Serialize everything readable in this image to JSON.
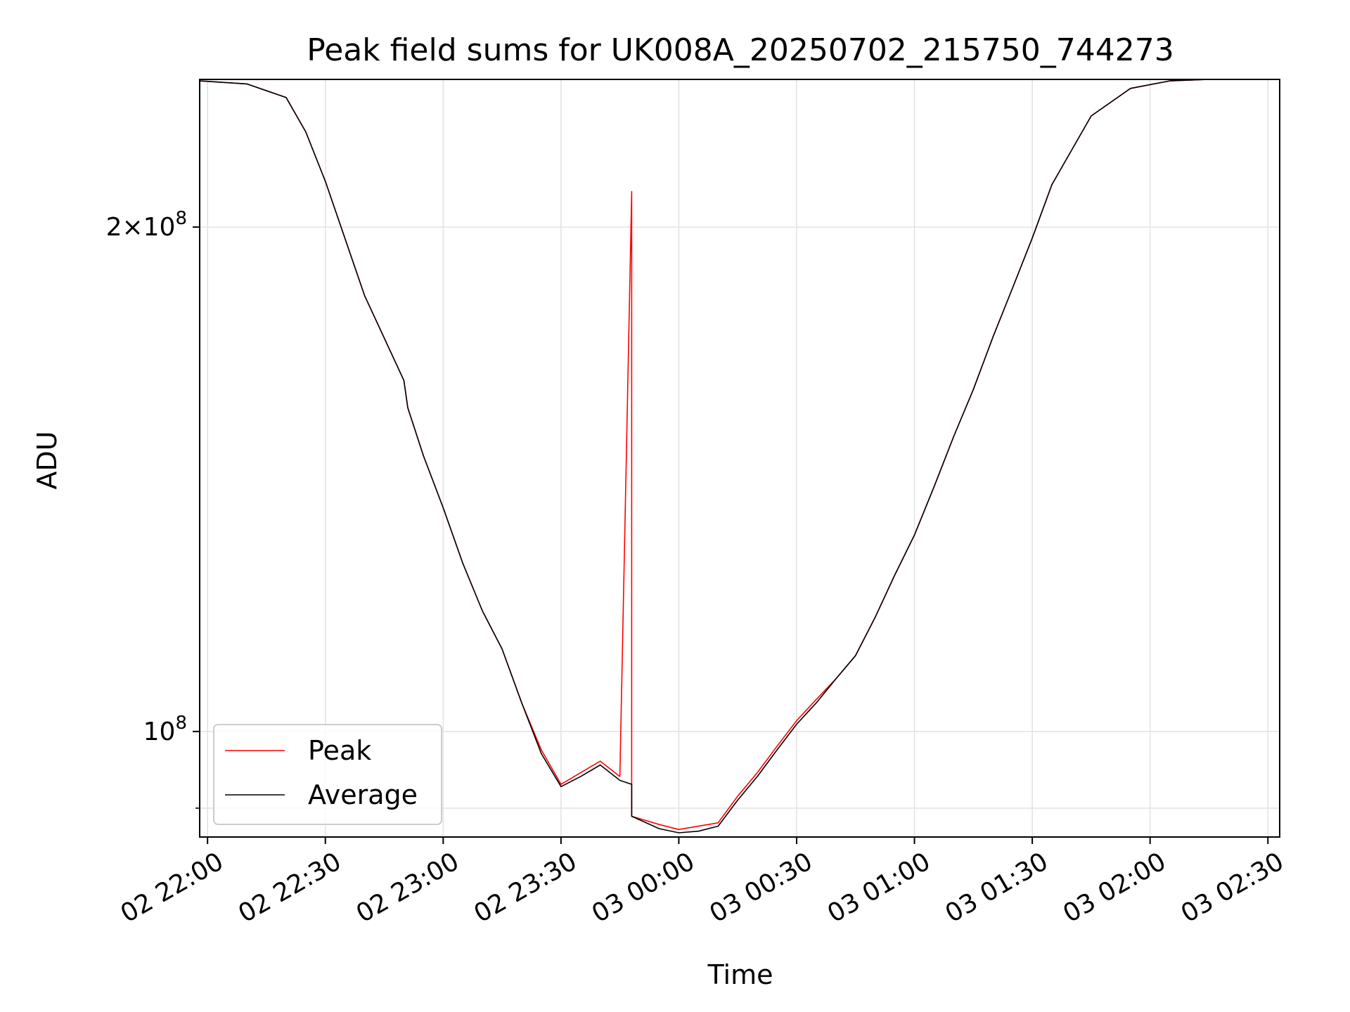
{
  "chart_data": {
    "type": "line",
    "title": "Peak field sums for UK008A_20250702_215750_744273",
    "xlabel": "Time",
    "ylabel": "ADU",
    "yscale": "log",
    "grid": true,
    "legend_position": "lower-left",
    "x_ticks": [
      "02 22:00",
      "02 22:30",
      "02 23:00",
      "02 23:30",
      "03 00:00",
      "03 00:30",
      "03 01:00",
      "03 01:30",
      "03 02:00",
      "03 02:30"
    ],
    "xlim": [
      "2025-07-02 21:58",
      "2025-07-03 02:33"
    ],
    "ylim": [
      86500000,
      245000000
    ],
    "y_ticks_major": [
      {
        "value": 100000000,
        "base": "10",
        "exp": "8",
        "mantissa": ""
      },
      {
        "value": 200000000,
        "base": "10",
        "exp": "8",
        "mantissa": "2×"
      }
    ],
    "y_ticks_minor": [
      90000000
    ],
    "series": [
      {
        "name": "Peak",
        "color": "#ff0000",
        "x": [
          "2025-07-02 21:58",
          "2025-07-02 22:10",
          "2025-07-02 22:20",
          "2025-07-02 22:25",
          "2025-07-02 22:30",
          "2025-07-02 22:40",
          "2025-07-02 22:50",
          "2025-07-02 22:51",
          "2025-07-02 22:55",
          "2025-07-02 23:00",
          "2025-07-02 23:05",
          "2025-07-02 23:10",
          "2025-07-02 23:15",
          "2025-07-02 23:20",
          "2025-07-02 23:25",
          "2025-07-02 23:30",
          "2025-07-02 23:35",
          "2025-07-02 23:40",
          "2025-07-02 23:45",
          "2025-07-02 23:48",
          "2025-07-02 23:48",
          "2025-07-02 23:48",
          "2025-07-02 23:55",
          "2025-07-03 00:00",
          "2025-07-03 00:05",
          "2025-07-03 00:10",
          "2025-07-03 00:15",
          "2025-07-03 00:20",
          "2025-07-03 00:25",
          "2025-07-03 00:30",
          "2025-07-03 00:35",
          "2025-07-03 00:40",
          "2025-07-03 00:45",
          "2025-07-03 00:50",
          "2025-07-03 00:55",
          "2025-07-03 01:00",
          "2025-07-03 01:05",
          "2025-07-03 01:10",
          "2025-07-03 01:15",
          "2025-07-03 01:20",
          "2025-07-03 01:25",
          "2025-07-03 01:30",
          "2025-07-03 01:35",
          "2025-07-03 01:45",
          "2025-07-03 01:55",
          "2025-07-03 02:05",
          "2025-07-03 02:15",
          "2025-07-03 02:33"
        ],
        "y": [
          244500000,
          243500000,
          239000000,
          228000000,
          213000000,
          182000000,
          162000000,
          156000000,
          146000000,
          136000000,
          126000000,
          118000000,
          112000000,
          104000000,
          97500000,
          93000000,
          94500000,
          96000000,
          94000000,
          210000000,
          93000000,
          89000000,
          88000000,
          87400000,
          87800000,
          88200000,
          91500000,
          94500000,
          98000000,
          101500000,
          104500000,
          107500000,
          111000000,
          117000000,
          124000000,
          131000000,
          140000000,
          150000000,
          160000000,
          172000000,
          184000000,
          197000000,
          212000000,
          233000000,
          242000000,
          244500000,
          245000000,
          245000000
        ]
      },
      {
        "name": "Average",
        "color": "#000000",
        "x": [
          "2025-07-02 21:58",
          "2025-07-02 22:10",
          "2025-07-02 22:20",
          "2025-07-02 22:25",
          "2025-07-02 22:30",
          "2025-07-02 22:40",
          "2025-07-02 22:50",
          "2025-07-02 22:51",
          "2025-07-02 22:55",
          "2025-07-02 23:00",
          "2025-07-02 23:05",
          "2025-07-02 23:10",
          "2025-07-02 23:15",
          "2025-07-02 23:20",
          "2025-07-02 23:25",
          "2025-07-02 23:30",
          "2025-07-02 23:35",
          "2025-07-02 23:40",
          "2025-07-02 23:45",
          "2025-07-02 23:48",
          "2025-07-02 23:48",
          "2025-07-02 23:55",
          "2025-07-03 00:00",
          "2025-07-03 00:05",
          "2025-07-03 00:10",
          "2025-07-03 00:15",
          "2025-07-03 00:20",
          "2025-07-03 00:25",
          "2025-07-03 00:30",
          "2025-07-03 00:35",
          "2025-07-03 00:40",
          "2025-07-03 00:45",
          "2025-07-03 00:50",
          "2025-07-03 00:55",
          "2025-07-03 01:00",
          "2025-07-03 01:05",
          "2025-07-03 01:10",
          "2025-07-03 01:15",
          "2025-07-03 01:20",
          "2025-07-03 01:25",
          "2025-07-03 01:30",
          "2025-07-03 01:35",
          "2025-07-03 01:45",
          "2025-07-03 01:55",
          "2025-07-03 02:05",
          "2025-07-03 02:15",
          "2025-07-03 02:33"
        ],
        "y": [
          244500000,
          243500000,
          239000000,
          228000000,
          213000000,
          182000000,
          162000000,
          156000000,
          146000000,
          136000000,
          126000000,
          118000000,
          112000000,
          104000000,
          97000000,
          92700000,
          94000000,
          95500000,
          93500000,
          93000000,
          89000000,
          87500000,
          87000000,
          87200000,
          87800000,
          91000000,
          94000000,
          97500000,
          101000000,
          104000000,
          107500000,
          111000000,
          117000000,
          124000000,
          131000000,
          140000000,
          150000000,
          160000000,
          172000000,
          184000000,
          197000000,
          212000000,
          233000000,
          242000000,
          244500000,
          245000000,
          245000000
        ]
      }
    ]
  }
}
